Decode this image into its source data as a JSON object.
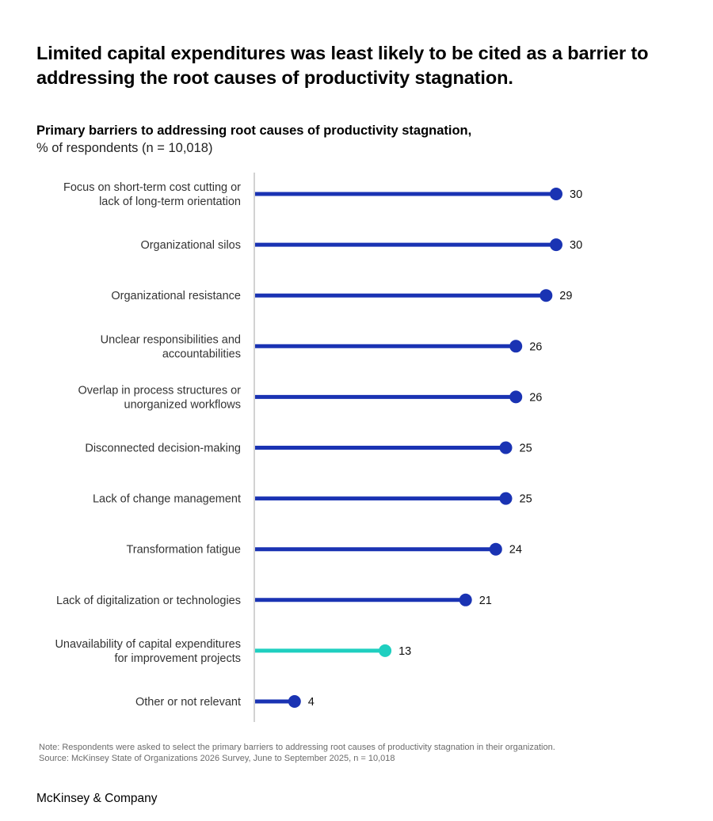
{
  "headline": "Limited capital expenditures was least likely to be cited as a barrier to addressing the root causes of productivity stagnation.",
  "subtitle": {
    "title": "Primary barriers to addressing root causes of productivity stagnation,",
    "unit": "% of respondents (n = 10,018)"
  },
  "colors": {
    "primary": "#1a33b3",
    "highlight": "#1fcfc0",
    "axis": "#c4c4c4"
  },
  "chart_data": {
    "type": "bar",
    "orientation": "horizontal",
    "style": "lollipop",
    "title": "Primary barriers to addressing root causes of productivity stagnation,",
    "ylabel": "% of respondents (n = 10,018)",
    "xlabel": "",
    "xlim": [
      0,
      30
    ],
    "grid": false,
    "legend": "none",
    "categories": [
      [
        "Focus on short-term cost cutting or",
        "lack of long-term orientation"
      ],
      [
        "Organizational silos"
      ],
      [
        "Organizational resistance"
      ],
      [
        "Unclear responsibilities and",
        "accountabilities"
      ],
      [
        "Overlap in process structures or",
        "unorganized workflows"
      ],
      [
        "Disconnected decision-making"
      ],
      [
        "Lack of change management"
      ],
      [
        "Transformation fatigue"
      ],
      [
        "Lack of digitalization or technologies"
      ],
      [
        "Unavailability of capital expenditures",
        "for improvement projects"
      ],
      [
        "Other or not relevant"
      ]
    ],
    "values": [
      30,
      30,
      29,
      26,
      26,
      25,
      25,
      24,
      21,
      13,
      4
    ],
    "highlighted_index": 9
  },
  "notes": {
    "note": "Note: Respondents were asked to select the primary barriers to addressing root causes of productivity stagnation in their organization.",
    "source": "Source: McKinsey State of Organizations 2026 Survey, June to September 2025, n = 10,018"
  },
  "brand": "McKinsey & Company"
}
